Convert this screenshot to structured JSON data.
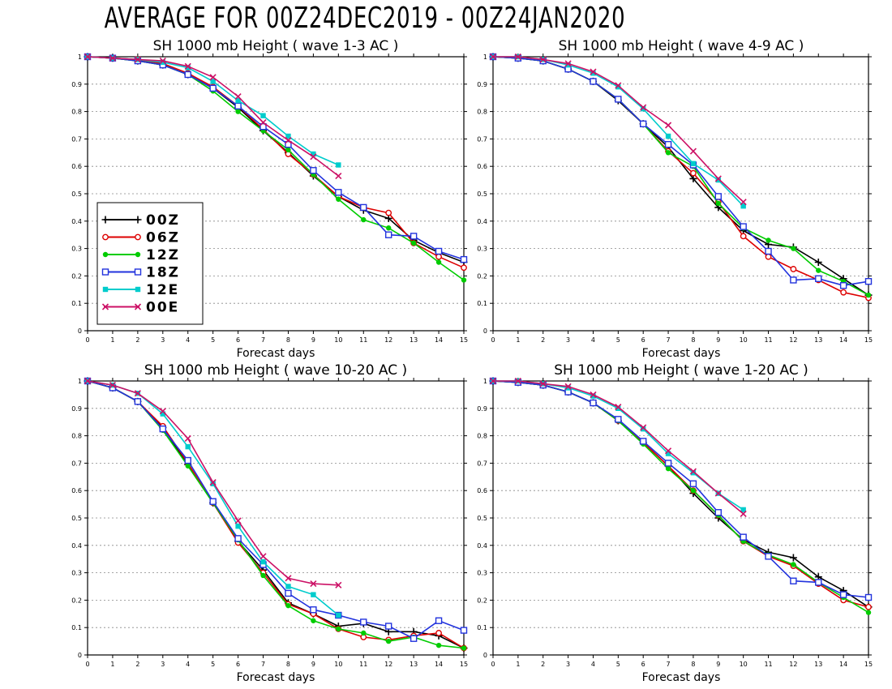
{
  "main_title": "AVERAGE FOR 00Z24DEC2019 - 00Z24JAN2020",
  "chart_data": [
    {
      "type": "line",
      "title": "SH 1000 mb Height ( wave 1-3 AC )",
      "xlabel": "Forecast days",
      "ylabel": "",
      "xlim": [
        0,
        15
      ],
      "ylim": [
        0,
        1
      ],
      "x_ticks": [
        0,
        1,
        2,
        3,
        4,
        5,
        6,
        7,
        8,
        9,
        10,
        11,
        12,
        13,
        14,
        15
      ],
      "y_ticks": [
        0,
        0.1,
        0.2,
        0.3,
        0.4,
        0.5,
        0.6,
        0.7,
        0.8,
        0.9,
        1
      ],
      "y_tick_labels": [
        "0",
        "0.1",
        "0.2",
        "0.3",
        "0.4",
        "0.5",
        "0.6",
        "0.7",
        "0.8",
        "0.9",
        "1"
      ],
      "grid": "horizontal dotted",
      "legend_position": "left-middle",
      "series": [
        {
          "name": "00Z",
          "color": "#000000",
          "marker": "plus",
          "x": [
            0,
            1,
            2,
            3,
            4,
            5,
            6,
            7,
            8,
            9,
            10,
            11,
            12,
            13,
            14,
            15
          ],
          "y": [
            1.0,
            0.995,
            0.985,
            0.97,
            0.935,
            0.885,
            0.815,
            0.73,
            0.65,
            0.565,
            0.49,
            0.44,
            0.41,
            0.33,
            0.285,
            0.25
          ]
        },
        {
          "name": "06Z",
          "color": "#dd0000",
          "marker": "circle",
          "x": [
            0,
            1,
            2,
            3,
            4,
            5,
            6,
            7,
            8,
            9,
            10,
            11,
            12,
            13,
            14,
            15
          ],
          "y": [
            1.0,
            0.995,
            0.99,
            0.975,
            0.94,
            0.89,
            0.82,
            0.735,
            0.645,
            0.57,
            0.49,
            0.45,
            0.43,
            0.32,
            0.27,
            0.23
          ]
        },
        {
          "name": "12Z",
          "color": "#00cc00",
          "marker": "dot",
          "x": [
            0,
            1,
            2,
            3,
            4,
            5,
            6,
            7,
            8,
            9,
            10,
            11,
            12,
            13,
            14,
            15
          ],
          "y": [
            1.0,
            0.995,
            0.985,
            0.97,
            0.935,
            0.875,
            0.8,
            0.73,
            0.66,
            0.57,
            0.48,
            0.405,
            0.375,
            0.32,
            0.25,
            0.185
          ]
        },
        {
          "name": "18Z",
          "color": "#2233dd",
          "marker": "square",
          "x": [
            0,
            1,
            2,
            3,
            4,
            5,
            6,
            7,
            8,
            9,
            10,
            11,
            12,
            13,
            14,
            15
          ],
          "y": [
            1.0,
            0.995,
            0.985,
            0.97,
            0.935,
            0.885,
            0.82,
            0.745,
            0.68,
            0.585,
            0.505,
            0.45,
            0.35,
            0.345,
            0.29,
            0.26
          ]
        },
        {
          "name": "12E",
          "color": "#00cccc",
          "marker": "filled-square",
          "x": [
            0,
            1,
            2,
            3,
            4,
            5,
            6,
            7,
            8,
            9,
            10
          ],
          "y": [
            1.0,
            0.995,
            0.99,
            0.98,
            0.96,
            0.91,
            0.84,
            0.785,
            0.71,
            0.645,
            0.605
          ]
        },
        {
          "name": "00E",
          "color": "#cc1166",
          "marker": "x",
          "x": [
            0,
            1,
            2,
            3,
            4,
            5,
            6,
            7,
            8,
            9,
            10
          ],
          "y": [
            1.0,
            0.995,
            0.99,
            0.985,
            0.965,
            0.925,
            0.855,
            0.76,
            0.695,
            0.635,
            0.565
          ]
        }
      ]
    },
    {
      "type": "line",
      "title": "SH 1000 mb Height ( wave 4-9 AC )",
      "xlabel": "Forecast days",
      "ylabel": "",
      "xlim": [
        0,
        15
      ],
      "ylim": [
        0,
        1
      ],
      "x_ticks": [
        0,
        1,
        2,
        3,
        4,
        5,
        6,
        7,
        8,
        9,
        10,
        11,
        12,
        13,
        14,
        15
      ],
      "y_ticks": [
        0,
        0.1,
        0.2,
        0.3,
        0.4,
        0.5,
        0.6,
        0.7,
        0.8,
        0.9,
        1
      ],
      "y_tick_labels": [
        "0",
        "0.1",
        "0.2",
        "0.3",
        "0.4",
        "0.5",
        "0.6",
        "0.7",
        "0.8",
        "0.9",
        "1"
      ],
      "grid": "horizontal dotted",
      "series": [
        {
          "name": "00Z",
          "color": "#000000",
          "marker": "plus",
          "x": [
            0,
            1,
            2,
            3,
            4,
            5,
            6,
            7,
            8,
            9,
            10,
            11,
            12,
            13,
            14,
            15
          ],
          "y": [
            1.0,
            0.995,
            0.985,
            0.955,
            0.91,
            0.84,
            0.755,
            0.67,
            0.555,
            0.45,
            0.365,
            0.315,
            0.305,
            0.25,
            0.19,
            0.13
          ]
        },
        {
          "name": "06Z",
          "color": "#dd0000",
          "marker": "circle",
          "x": [
            0,
            1,
            2,
            3,
            4,
            5,
            6,
            7,
            8,
            9,
            10,
            11,
            12,
            13,
            14,
            15
          ],
          "y": [
            1.0,
            0.995,
            0.985,
            0.955,
            0.91,
            0.845,
            0.755,
            0.655,
            0.575,
            0.47,
            0.345,
            0.27,
            0.225,
            0.185,
            0.14,
            0.12
          ]
        },
        {
          "name": "12Z",
          "color": "#00cc00",
          "marker": "dot",
          "x": [
            0,
            1,
            2,
            3,
            4,
            5,
            6,
            7,
            8,
            9,
            10,
            11,
            12,
            13,
            14,
            15
          ],
          "y": [
            1.0,
            0.995,
            0.985,
            0.955,
            0.91,
            0.845,
            0.755,
            0.65,
            0.6,
            0.465,
            0.375,
            0.33,
            0.3,
            0.22,
            0.18,
            0.13
          ]
        },
        {
          "name": "18Z",
          "color": "#2233dd",
          "marker": "square",
          "x": [
            0,
            1,
            2,
            3,
            4,
            5,
            6,
            7,
            8,
            9,
            10,
            11,
            12,
            13,
            14,
            15
          ],
          "y": [
            1.0,
            0.995,
            0.985,
            0.955,
            0.91,
            0.845,
            0.755,
            0.68,
            0.605,
            0.49,
            0.38,
            0.29,
            0.185,
            0.19,
            0.165,
            0.18
          ]
        },
        {
          "name": "12E",
          "color": "#00cccc",
          "marker": "filled-square",
          "x": [
            0,
            1,
            2,
            3,
            4,
            5,
            6,
            7,
            8,
            9,
            10
          ],
          "y": [
            1.0,
            1.0,
            0.99,
            0.97,
            0.94,
            0.89,
            0.81,
            0.71,
            0.61,
            0.55,
            0.455
          ]
        },
        {
          "name": "00E",
          "color": "#cc1166",
          "marker": "x",
          "x": [
            0,
            1,
            2,
            3,
            4,
            5,
            6,
            7,
            8,
            9,
            10
          ],
          "y": [
            1.0,
            1.0,
            0.99,
            0.975,
            0.945,
            0.895,
            0.815,
            0.75,
            0.655,
            0.555,
            0.47
          ]
        }
      ]
    },
    {
      "type": "line",
      "title": "SH 1000 mb Height ( wave 10-20 AC )",
      "xlabel": "Forecast days",
      "ylabel": "",
      "xlim": [
        0,
        15
      ],
      "ylim": [
        0,
        1
      ],
      "x_ticks": [
        0,
        1,
        2,
        3,
        4,
        5,
        6,
        7,
        8,
        9,
        10,
        11,
        12,
        13,
        14,
        15
      ],
      "y_ticks": [
        0,
        0.1,
        0.2,
        0.3,
        0.4,
        0.5,
        0.6,
        0.7,
        0.8,
        0.9,
        1
      ],
      "y_tick_labels": [
        "0",
        "0.1",
        "0.2",
        "0.3",
        "0.4",
        "0.5",
        "0.6",
        "0.7",
        "0.8",
        "0.9",
        "1"
      ],
      "grid": "horizontal dotted",
      "series": [
        {
          "name": "00Z",
          "color": "#000000",
          "marker": "plus",
          "x": [
            0,
            1,
            2,
            3,
            4,
            5,
            6,
            7,
            8,
            9,
            10,
            11,
            12,
            13,
            14,
            15
          ],
          "y": [
            1.0,
            0.975,
            0.925,
            0.83,
            0.695,
            0.555,
            0.415,
            0.31,
            0.19,
            0.15,
            0.105,
            0.115,
            0.085,
            0.085,
            0.07,
            0.025
          ]
        },
        {
          "name": "06Z",
          "color": "#dd0000",
          "marker": "circle",
          "x": [
            0,
            1,
            2,
            3,
            4,
            5,
            6,
            7,
            8,
            9,
            10,
            11,
            12,
            13,
            14,
            15
          ],
          "y": [
            1.0,
            0.975,
            0.925,
            0.835,
            0.7,
            0.555,
            0.41,
            0.3,
            0.185,
            0.15,
            0.095,
            0.065,
            0.055,
            0.07,
            0.08,
            0.025
          ]
        },
        {
          "name": "12Z",
          "color": "#00cc00",
          "marker": "dot",
          "x": [
            0,
            1,
            2,
            3,
            4,
            5,
            6,
            7,
            8,
            9,
            10,
            11,
            12,
            13,
            14,
            15
          ],
          "y": [
            1.0,
            0.975,
            0.925,
            0.82,
            0.69,
            0.555,
            0.42,
            0.29,
            0.18,
            0.125,
            0.095,
            0.08,
            0.05,
            0.065,
            0.035,
            0.025
          ]
        },
        {
          "name": "18Z",
          "color": "#2233dd",
          "marker": "square",
          "x": [
            0,
            1,
            2,
            3,
            4,
            5,
            6,
            7,
            8,
            9,
            10,
            11,
            12,
            13,
            14,
            15
          ],
          "y": [
            1.0,
            0.975,
            0.925,
            0.825,
            0.71,
            0.56,
            0.425,
            0.33,
            0.225,
            0.165,
            0.145,
            0.12,
            0.105,
            0.06,
            0.125,
            0.09
          ]
        },
        {
          "name": "12E",
          "color": "#00cccc",
          "marker": "filled-square",
          "x": [
            0,
            1,
            2,
            3,
            4,
            5,
            6,
            7,
            8,
            9,
            10
          ],
          "y": [
            1.0,
            0.985,
            0.955,
            0.88,
            0.76,
            0.625,
            0.47,
            0.34,
            0.25,
            0.22,
            0.145
          ]
        },
        {
          "name": "00E",
          "color": "#cc1166",
          "marker": "x",
          "x": [
            0,
            1,
            2,
            3,
            4,
            5,
            6,
            7,
            8,
            9,
            10
          ],
          "y": [
            1.0,
            0.985,
            0.955,
            0.89,
            0.79,
            0.63,
            0.49,
            0.36,
            0.28,
            0.26,
            0.255
          ]
        }
      ]
    },
    {
      "type": "line",
      "title": "SH 1000 mb Height ( wave 1-20 AC )",
      "xlabel": "Forecast days",
      "ylabel": "",
      "xlim": [
        0,
        15
      ],
      "ylim": [
        0,
        1
      ],
      "x_ticks": [
        0,
        1,
        2,
        3,
        4,
        5,
        6,
        7,
        8,
        9,
        10,
        11,
        12,
        13,
        14,
        15
      ],
      "y_ticks": [
        0,
        0.1,
        0.2,
        0.3,
        0.4,
        0.5,
        0.6,
        0.7,
        0.8,
        0.9,
        1
      ],
      "y_tick_labels": [
        "0",
        "0.1",
        "0.2",
        "0.3",
        "0.4",
        "0.5",
        "0.6",
        "0.7",
        "0.8",
        "0.9",
        "1"
      ],
      "grid": "horizontal dotted",
      "series": [
        {
          "name": "00Z",
          "color": "#000000",
          "marker": "plus",
          "x": [
            0,
            1,
            2,
            3,
            4,
            5,
            6,
            7,
            8,
            9,
            10,
            11,
            12,
            13,
            14,
            15
          ],
          "y": [
            1.0,
            0.995,
            0.985,
            0.96,
            0.92,
            0.855,
            0.775,
            0.69,
            0.59,
            0.5,
            0.42,
            0.375,
            0.355,
            0.285,
            0.235,
            0.175
          ]
        },
        {
          "name": "06Z",
          "color": "#dd0000",
          "marker": "circle",
          "x": [
            0,
            1,
            2,
            3,
            4,
            5,
            6,
            7,
            8,
            9,
            10,
            11,
            12,
            13,
            14,
            15
          ],
          "y": [
            1.0,
            0.995,
            0.985,
            0.96,
            0.92,
            0.855,
            0.775,
            0.69,
            0.6,
            0.51,
            0.415,
            0.36,
            0.325,
            0.26,
            0.2,
            0.175
          ]
        },
        {
          "name": "12Z",
          "color": "#00cc00",
          "marker": "dot",
          "x": [
            0,
            1,
            2,
            3,
            4,
            5,
            6,
            7,
            8,
            9,
            10,
            11,
            12,
            13,
            14,
            15
          ],
          "y": [
            1.0,
            0.995,
            0.985,
            0.96,
            0.92,
            0.855,
            0.77,
            0.68,
            0.6,
            0.51,
            0.415,
            0.365,
            0.33,
            0.265,
            0.21,
            0.155
          ]
        },
        {
          "name": "18Z",
          "color": "#2233dd",
          "marker": "square",
          "x": [
            0,
            1,
            2,
            3,
            4,
            5,
            6,
            7,
            8,
            9,
            10,
            11,
            12,
            13,
            14,
            15
          ],
          "y": [
            1.0,
            0.995,
            0.985,
            0.96,
            0.92,
            0.86,
            0.78,
            0.7,
            0.625,
            0.52,
            0.43,
            0.36,
            0.27,
            0.265,
            0.22,
            0.21
          ]
        },
        {
          "name": "12E",
          "color": "#00cccc",
          "marker": "filled-square",
          "x": [
            0,
            1,
            2,
            3,
            4,
            5,
            6,
            7,
            8,
            9,
            10
          ],
          "y": [
            1.0,
            1.0,
            0.99,
            0.975,
            0.945,
            0.9,
            0.825,
            0.735,
            0.665,
            0.59,
            0.53
          ]
        },
        {
          "name": "00E",
          "color": "#cc1166",
          "marker": "x",
          "x": [
            0,
            1,
            2,
            3,
            4,
            5,
            6,
            7,
            8,
            9,
            10
          ],
          "y": [
            1.0,
            1.0,
            0.99,
            0.98,
            0.95,
            0.905,
            0.83,
            0.745,
            0.67,
            0.59,
            0.515
          ]
        }
      ]
    }
  ]
}
